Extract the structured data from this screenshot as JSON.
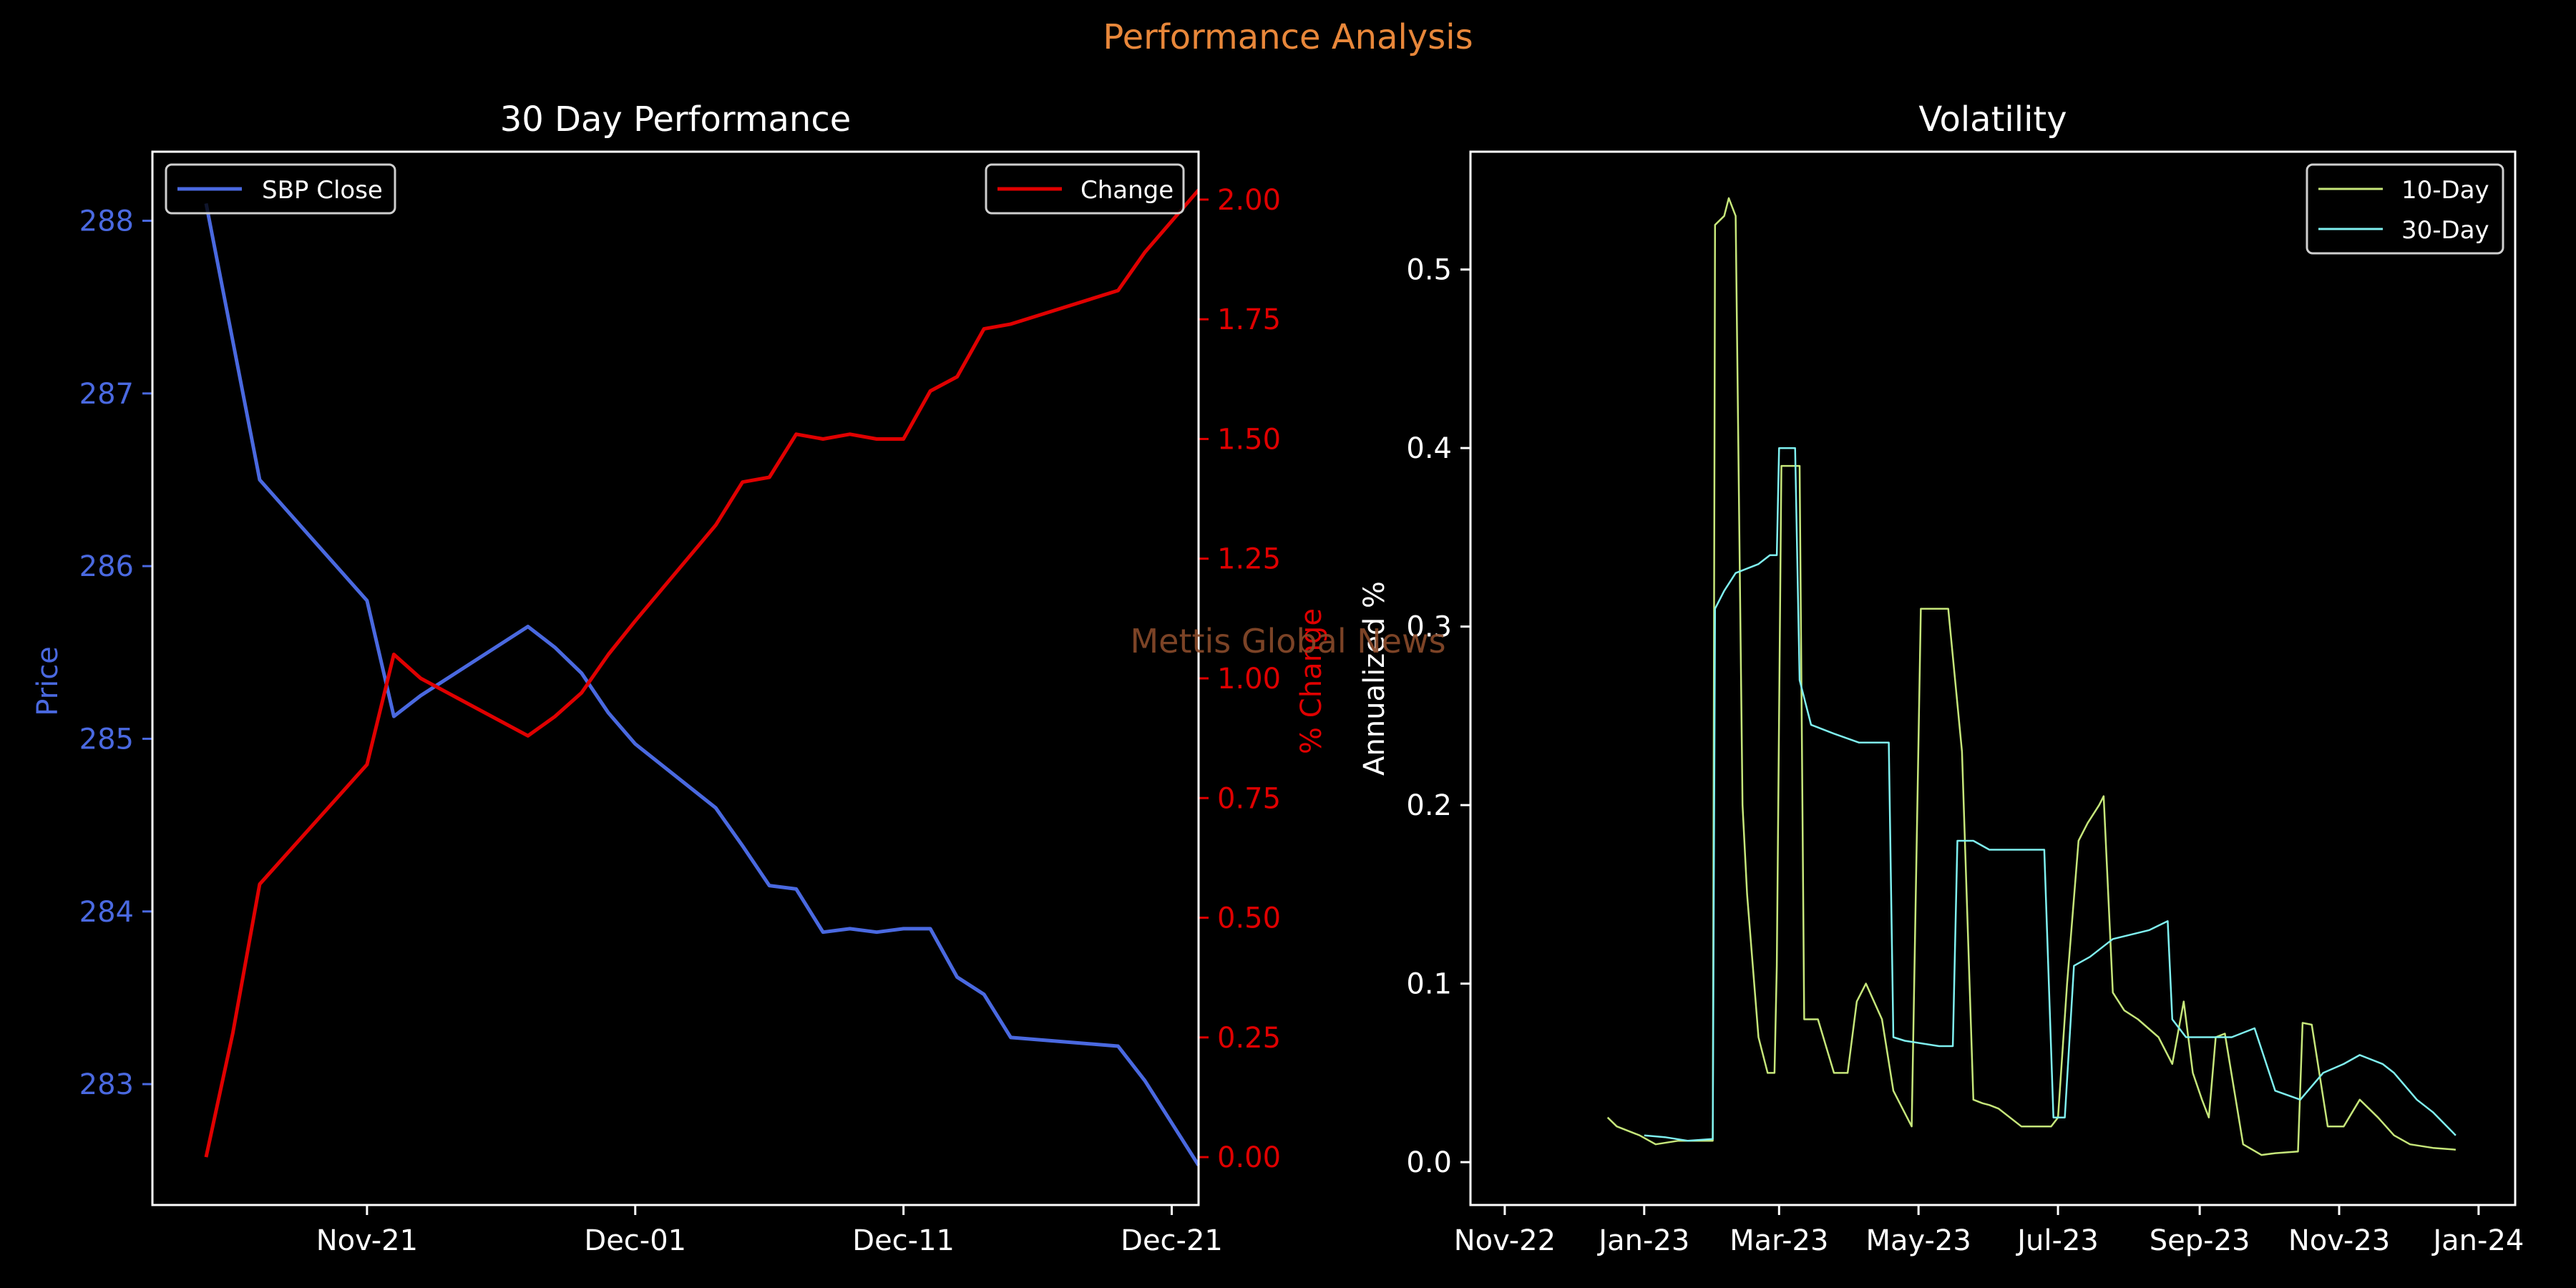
{
  "suptitle": "Performance Analysis",
  "watermark": "Mettis Global News",
  "colors": {
    "background": "#000000",
    "suptitle": "#e8873a",
    "price": "#4a69e0",
    "change": "#e00000",
    "vol10": "#c6e67a",
    "vol30": "#7ff0f0",
    "axes": "#ffffff",
    "watermark": "#8a4a2a"
  },
  "chart_data": [
    {
      "type": "line",
      "title": "30 Day Performance",
      "x_type": "date",
      "xlim": [
        "2023-11-13",
        "2023-12-22"
      ],
      "xticks": [
        "2023-11-21",
        "2023-12-01",
        "2023-12-11",
        "2023-12-21"
      ],
      "xticklabels": [
        "Nov-21",
        "Dec-01",
        "Dec-11",
        "Dec-21"
      ],
      "ylabel": "Price",
      "ylim": [
        282.3,
        288.4
      ],
      "yticks": [
        283,
        284,
        285,
        286,
        287,
        288
      ],
      "y2label": "% Change",
      "y2lim": [
        -0.1,
        2.1
      ],
      "y2ticks": [
        "0.00",
        "0.25",
        "0.50",
        "0.75",
        "1.00",
        "1.25",
        "1.50",
        "1.75",
        "2.00"
      ],
      "legend_left": {
        "placement": "upper-left",
        "entries": [
          "SBP Close"
        ]
      },
      "legend_right": {
        "placement": "upper-right",
        "entries": [
          "Change"
        ]
      },
      "series": [
        {
          "name": "SBP Close",
          "axis": "left",
          "x": [
            "2023-11-15",
            "2023-11-16",
            "2023-11-17",
            "2023-11-21",
            "2023-11-22",
            "2023-11-23",
            "2023-11-24",
            "2023-11-27",
            "2023-11-28",
            "2023-11-29",
            "2023-11-30",
            "2023-12-01",
            "2023-12-04",
            "2023-12-05",
            "2023-12-06",
            "2023-12-07",
            "2023-12-08",
            "2023-12-09",
            "2023-12-10",
            "2023-12-11",
            "2023-12-12",
            "2023-12-13",
            "2023-12-14",
            "2023-12-15",
            "2023-12-19",
            "2023-12-20",
            "2023-12-22"
          ],
          "values": [
            288.1,
            287.3,
            286.5,
            285.8,
            285.13,
            285.25,
            285.35,
            285.65,
            285.53,
            285.38,
            285.15,
            284.97,
            284.6,
            284.38,
            284.15,
            284.13,
            283.88,
            283.9,
            283.88,
            283.9,
            283.9,
            283.62,
            283.52,
            283.27,
            283.22,
            283.02,
            282.53
          ]
        },
        {
          "name": "Change",
          "axis": "right",
          "x": [
            "2023-11-15",
            "2023-11-16",
            "2023-11-17",
            "2023-11-21",
            "2023-11-22",
            "2023-11-23",
            "2023-11-24",
            "2023-11-27",
            "2023-11-28",
            "2023-11-29",
            "2023-11-30",
            "2023-12-01",
            "2023-12-04",
            "2023-12-05",
            "2023-12-06",
            "2023-12-07",
            "2023-12-08",
            "2023-12-09",
            "2023-12-10",
            "2023-12-11",
            "2023-12-12",
            "2023-12-13",
            "2023-12-14",
            "2023-12-15",
            "2023-12-19",
            "2023-12-20",
            "2023-12-22"
          ],
          "values": [
            0.0,
            0.26,
            0.57,
            0.82,
            1.05,
            1.0,
            0.97,
            0.88,
            0.92,
            0.97,
            1.05,
            1.12,
            1.32,
            1.41,
            1.42,
            1.51,
            1.5,
            1.51,
            1.5,
            1.5,
            1.6,
            1.63,
            1.73,
            1.74,
            1.81,
            1.89,
            2.02
          ]
        }
      ]
    },
    {
      "type": "line",
      "title": "Volatility",
      "x_type": "date",
      "xlim": [
        "2022-10-17",
        "2024-01-17"
      ],
      "xticks": [
        "2022-11-01",
        "2023-01-01",
        "2023-03-01",
        "2023-05-01",
        "2023-07-01",
        "2023-09-01",
        "2023-11-01",
        "2024-01-01"
      ],
      "xticklabels": [
        "Nov-22",
        "Jan-23",
        "Mar-23",
        "May-23",
        "Jul-23",
        "Sep-23",
        "Nov-23",
        "Jan-24"
      ],
      "ylabel": "Annualized %",
      "ylim": [
        -0.024,
        0.566
      ],
      "yticks": [
        "0.0",
        "0.1",
        "0.2",
        "0.3",
        "0.4",
        "0.5"
      ],
      "legend": {
        "placement": "upper-right",
        "entries": [
          "10-Day",
          "30-Day"
        ]
      },
      "series": [
        {
          "name": "10-Day",
          "x": [
            "2022-12-16",
            "2022-12-20",
            "2022-12-30",
            "2023-01-06",
            "2023-01-16",
            "2023-01-31",
            "2023-02-01",
            "2023-02-05",
            "2023-02-07",
            "2023-02-10",
            "2023-02-13",
            "2023-02-15",
            "2023-02-20",
            "2023-02-24",
            "2023-02-27",
            "2023-02-28",
            "2023-03-02",
            "2023-03-10",
            "2023-03-12",
            "2023-03-18",
            "2023-03-25",
            "2023-03-31",
            "2023-04-04",
            "2023-04-08",
            "2023-04-15",
            "2023-04-20",
            "2023-04-28",
            "2023-05-02",
            "2023-05-07",
            "2023-05-14",
            "2023-05-20",
            "2023-05-25",
            "2023-05-29",
            "2023-06-01",
            "2023-06-05",
            "2023-06-15",
            "2023-06-25",
            "2023-06-28",
            "2023-07-01",
            "2023-07-05",
            "2023-07-10",
            "2023-07-14",
            "2023-07-19",
            "2023-07-21",
            "2023-07-25",
            "2023-07-30",
            "2023-08-05",
            "2023-08-14",
            "2023-08-20",
            "2023-08-25",
            "2023-08-29",
            "2023-09-02",
            "2023-09-05",
            "2023-09-08",
            "2023-09-12",
            "2023-09-20",
            "2023-09-28",
            "2023-10-04",
            "2023-10-14",
            "2023-10-16",
            "2023-10-20",
            "2023-10-27",
            "2023-11-03",
            "2023-11-10",
            "2023-11-18",
            "2023-11-25",
            "2023-12-02",
            "2023-12-12",
            "2023-12-22"
          ],
          "values": [
            0.025,
            0.02,
            0.015,
            0.01,
            0.012,
            0.012,
            0.525,
            0.53,
            0.54,
            0.53,
            0.2,
            0.15,
            0.07,
            0.05,
            0.05,
            0.11,
            0.39,
            0.39,
            0.08,
            0.08,
            0.05,
            0.05,
            0.09,
            0.1,
            0.08,
            0.04,
            0.02,
            0.31,
            0.31,
            0.31,
            0.23,
            0.035,
            0.033,
            0.032,
            0.03,
            0.02,
            0.02,
            0.02,
            0.025,
            0.1,
            0.18,
            0.19,
            0.2,
            0.205,
            0.095,
            0.085,
            0.08,
            0.07,
            0.055,
            0.09,
            0.05,
            0.035,
            0.025,
            0.07,
            0.072,
            0.01,
            0.004,
            0.005,
            0.006,
            0.078,
            0.077,
            0.02,
            0.02,
            0.035,
            0.025,
            0.015,
            0.01,
            0.008,
            0.007
          ]
        },
        {
          "name": "30-Day",
          "x": [
            "2023-01-01",
            "2023-01-10",
            "2023-01-20",
            "2023-01-31",
            "2023-02-01",
            "2023-02-05",
            "2023-02-10",
            "2023-02-20",
            "2023-02-25",
            "2023-02-28",
            "2023-03-01",
            "2023-03-08",
            "2023-03-10",
            "2023-03-15",
            "2023-03-25",
            "2023-04-05",
            "2023-04-18",
            "2023-04-20",
            "2023-04-25",
            "2023-05-10",
            "2023-05-16",
            "2023-05-18",
            "2023-05-25",
            "2023-06-01",
            "2023-06-10",
            "2023-06-25",
            "2023-06-29",
            "2023-07-04",
            "2023-07-08",
            "2023-07-15",
            "2023-07-25",
            "2023-08-10",
            "2023-08-18",
            "2023-08-20",
            "2023-08-26",
            "2023-09-01",
            "2023-09-15",
            "2023-09-25",
            "2023-10-04",
            "2023-10-15",
            "2023-10-25",
            "2023-11-03",
            "2023-11-10",
            "2023-11-20",
            "2023-11-25",
            "2023-12-05",
            "2023-12-12",
            "2023-12-22"
          ],
          "values": [
            0.015,
            0.014,
            0.012,
            0.013,
            0.31,
            0.32,
            0.33,
            0.335,
            0.34,
            0.34,
            0.4,
            0.4,
            0.27,
            0.245,
            0.24,
            0.235,
            0.235,
            0.07,
            0.068,
            0.065,
            0.065,
            0.18,
            0.18,
            0.175,
            0.175,
            0.175,
            0.025,
            0.025,
            0.11,
            0.115,
            0.125,
            0.13,
            0.135,
            0.08,
            0.07,
            0.07,
            0.07,
            0.075,
            0.04,
            0.035,
            0.05,
            0.055,
            0.06,
            0.055,
            0.05,
            0.035,
            0.028,
            0.015
          ]
        }
      ]
    }
  ]
}
